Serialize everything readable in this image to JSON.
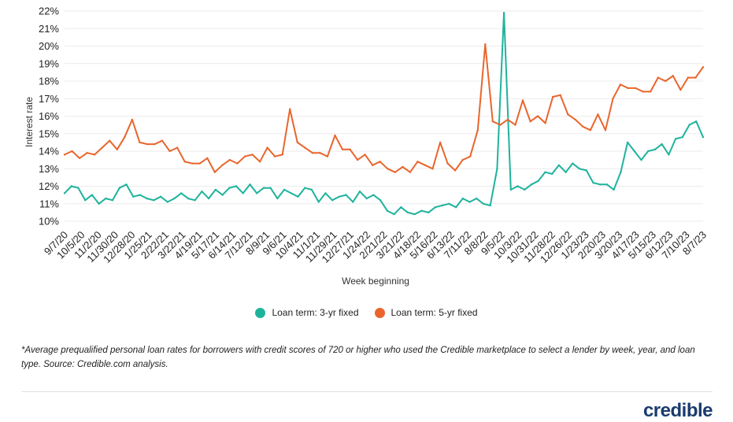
{
  "chart_data": {
    "type": "line",
    "ylabel": "Interest rate",
    "xlabel": "Week beginning",
    "ylim": [
      10,
      22
    ],
    "y_ticks": [
      "22%",
      "21%",
      "20%",
      "19%",
      "18%",
      "17%",
      "16%",
      "15%",
      "14%",
      "13%",
      "12%",
      "11%",
      "10%"
    ],
    "x_ticks": [
      "9/7/20",
      "10/5/20",
      "11/2/20",
      "11/30/20",
      "12/28/20",
      "1/25/21",
      "2/22/21",
      "3/22/21",
      "4/19/21",
      "5/17/21",
      "6/14/21",
      "7/12/21",
      "8/9/21",
      "9/6/21",
      "10/4/21",
      "11/1/21",
      "11/29/21",
      "12/27/21",
      "1/24/22",
      "2/21/22",
      "3/21/22",
      "4/18/22",
      "5/16/22",
      "6/13/22",
      "7/11/22",
      "8/8/22",
      "9/5/22",
      "10/3/22",
      "10/31/22",
      "11/28/22",
      "12/26/22",
      "1/23/23",
      "2/20/23",
      "3/20/23",
      "4/17/23",
      "5/15/23",
      "6/12/23",
      "7/10/23",
      "8/7/23"
    ],
    "grid": true,
    "legend_position": "bottom-center",
    "series": [
      {
        "name": "Loan term: 3-yr fixed",
        "color": "#1fb39c",
        "values": [
          11.6,
          12.0,
          11.9,
          11.2,
          11.5,
          11.0,
          11.3,
          11.2,
          11.9,
          12.1,
          11.4,
          11.5,
          11.3,
          11.2,
          11.4,
          11.1,
          11.3,
          11.6,
          11.3,
          11.2,
          11.7,
          11.3,
          11.8,
          11.5,
          11.9,
          12.0,
          11.6,
          12.1,
          11.6,
          11.9,
          11.9,
          11.3,
          11.8,
          11.6,
          11.4,
          11.9,
          11.8,
          11.1,
          11.6,
          11.2,
          11.4,
          11.5,
          11.1,
          11.7,
          11.3,
          11.5,
          11.2,
          10.6,
          10.4,
          10.8,
          10.5,
          10.4,
          10.6,
          10.5,
          10.8,
          10.9,
          11.0,
          10.8,
          11.3,
          11.1,
          11.3,
          11.0,
          10.9,
          13.0,
          21.9,
          11.8,
          12.0,
          11.8,
          12.1,
          12.3,
          12.8,
          12.7,
          13.2,
          12.8,
          13.3,
          13.0,
          12.9,
          12.2,
          12.1,
          12.1,
          11.8,
          12.8,
          14.5,
          14.0,
          13.5,
          14.0,
          14.1,
          14.4,
          13.8,
          14.7,
          14.8,
          15.5,
          15.7,
          14.8
        ],
        "markers": [
          0,
          1,
          2,
          3,
          4,
          5,
          6,
          7,
          8,
          9,
          10,
          11,
          12,
          13,
          14,
          15,
          16,
          17,
          18,
          19,
          20,
          21,
          22,
          23,
          24,
          25,
          26,
          27,
          28,
          29,
          30,
          31,
          32,
          33,
          34,
          35,
          36,
          37,
          38,
          39,
          40,
          41,
          42,
          43,
          44,
          45,
          46,
          47,
          48,
          49,
          50,
          51,
          52,
          53,
          54,
          55,
          56,
          57,
          58,
          59,
          60,
          61,
          62,
          63,
          64,
          65,
          66,
          67,
          68,
          69,
          70,
          71,
          72,
          73,
          74,
          75,
          76,
          77,
          78,
          79,
          80,
          81,
          82,
          83,
          84,
          85,
          86,
          87,
          88,
          89,
          90,
          91,
          92,
          93
        ]
      },
      {
        "name": "Loan term: 5-yr fixed",
        "color": "#e9652c",
        "values": [
          13.8,
          14.0,
          13.6,
          13.9,
          13.8,
          14.2,
          14.6,
          14.1,
          14.8,
          15.8,
          14.5,
          14.4,
          14.4,
          14.6,
          14.0,
          14.2,
          13.4,
          13.3,
          13.3,
          13.6,
          12.8,
          13.2,
          13.5,
          13.3,
          13.7,
          13.8,
          13.4,
          14.2,
          13.7,
          13.8,
          16.4,
          14.5,
          14.2,
          13.9,
          13.9,
          13.7,
          14.9,
          14.1,
          14.1,
          13.5,
          13.8,
          13.2,
          13.4,
          13.0,
          12.8,
          13.1,
          12.8,
          13.4,
          13.2,
          13.0,
          14.5,
          13.3,
          12.9,
          13.5,
          13.7,
          15.2,
          20.1,
          15.7,
          15.5,
          15.8,
          15.5,
          16.9,
          15.7,
          16.0,
          15.6,
          17.1,
          17.2,
          16.1,
          15.8,
          15.4,
          15.2,
          16.1,
          15.2,
          17.0,
          17.8,
          17.6,
          17.6,
          17.4,
          17.4,
          18.2,
          18.0,
          18.3,
          17.5,
          18.2,
          18.2,
          18.8
        ],
        "markers": []
      }
    ]
  },
  "legend": {
    "items": [
      {
        "label": "Loan term: 3-yr fixed",
        "color": "#1fb39c"
      },
      {
        "label": "Loan term: 5-yr fixed",
        "color": "#e9652c"
      }
    ]
  },
  "footnote": "*Average prequalified personal loan rates for borrowers with credit scores of 720 or higher who used the Credible marketplace to select a lender by week, year, and loan type. Source: Credible.com analysis.",
  "brand": {
    "logo_text": "credible",
    "logo_color": "#1a3b6e"
  }
}
